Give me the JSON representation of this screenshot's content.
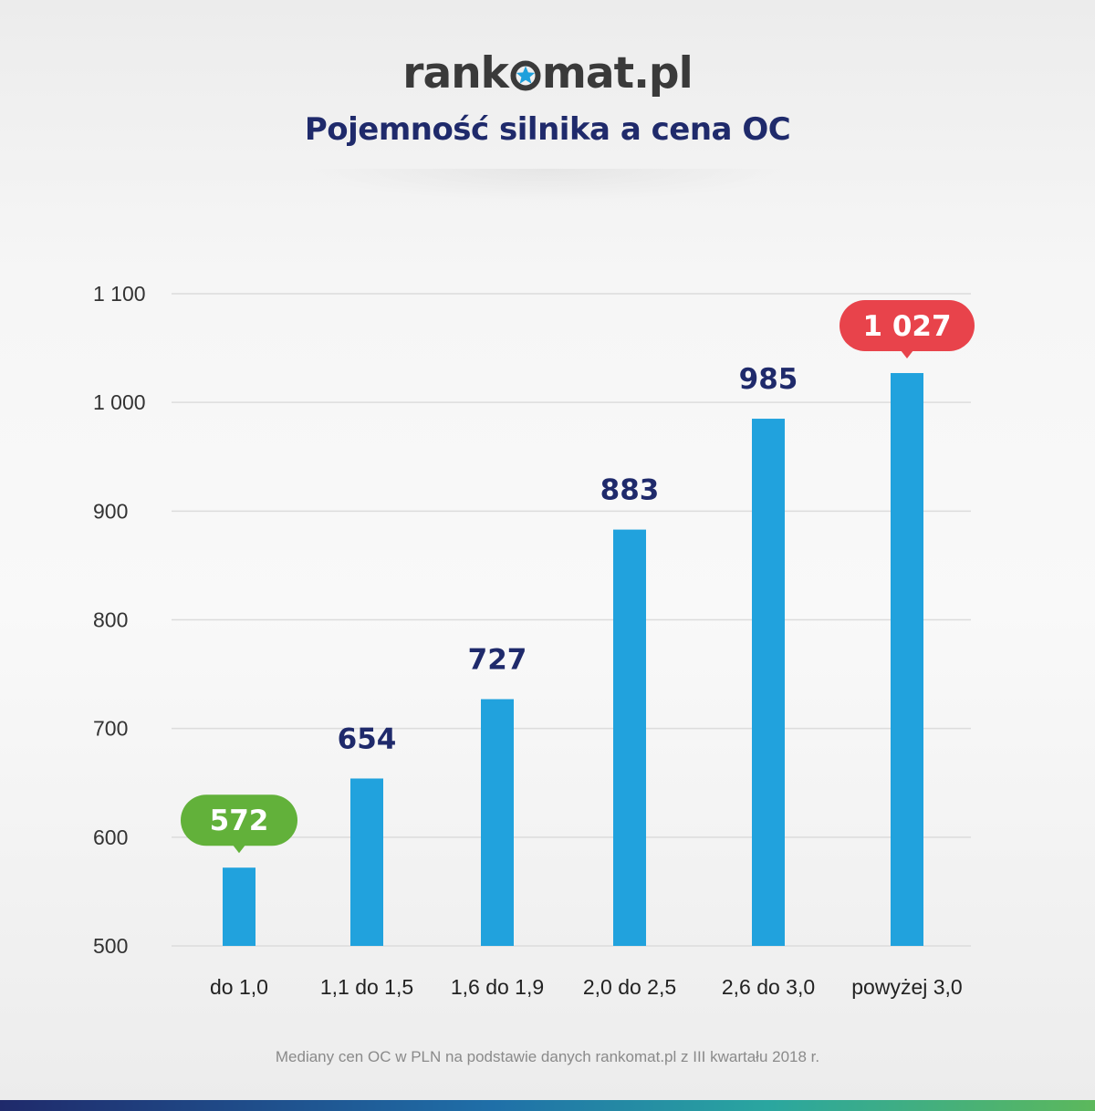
{
  "logo": {
    "text_left": "rank",
    "text_right": "mat.pl",
    "star_color": "#1ea0dc",
    "text_color": "#3a3a3a"
  },
  "title": "Pojemność silnika a cena OC",
  "footnote": "Mediany cen OC w PLN na podstawie danych rankomat.pl z III kwartału 2018 r.",
  "colors": {
    "bar": "#21a2dd",
    "title": "#1f2a6b",
    "min_badge": "#62b13a",
    "max_badge": "#e8434b"
  },
  "chart_data": {
    "type": "bar",
    "title": "Pojemność silnika a cena OC",
    "categories": [
      "do 1,0",
      "1,1 do 1,5",
      "1,6 do 1,9",
      "2,0 do 2,5",
      "2,6 do 3,0",
      "powyżej 3,0"
    ],
    "values": [
      572,
      654,
      727,
      883,
      985,
      1027
    ],
    "value_labels": [
      "572",
      "654",
      "727",
      "883",
      "985",
      "1 027"
    ],
    "ylim": [
      500,
      1100
    ],
    "yticks": [
      500,
      600,
      700,
      800,
      900,
      1000,
      1100
    ],
    "ytick_labels": [
      "500",
      "600",
      "700",
      "800",
      "900",
      "1 000",
      "1 100"
    ],
    "grid": true,
    "highlight": {
      "min_index": 0,
      "max_index": 5
    }
  }
}
